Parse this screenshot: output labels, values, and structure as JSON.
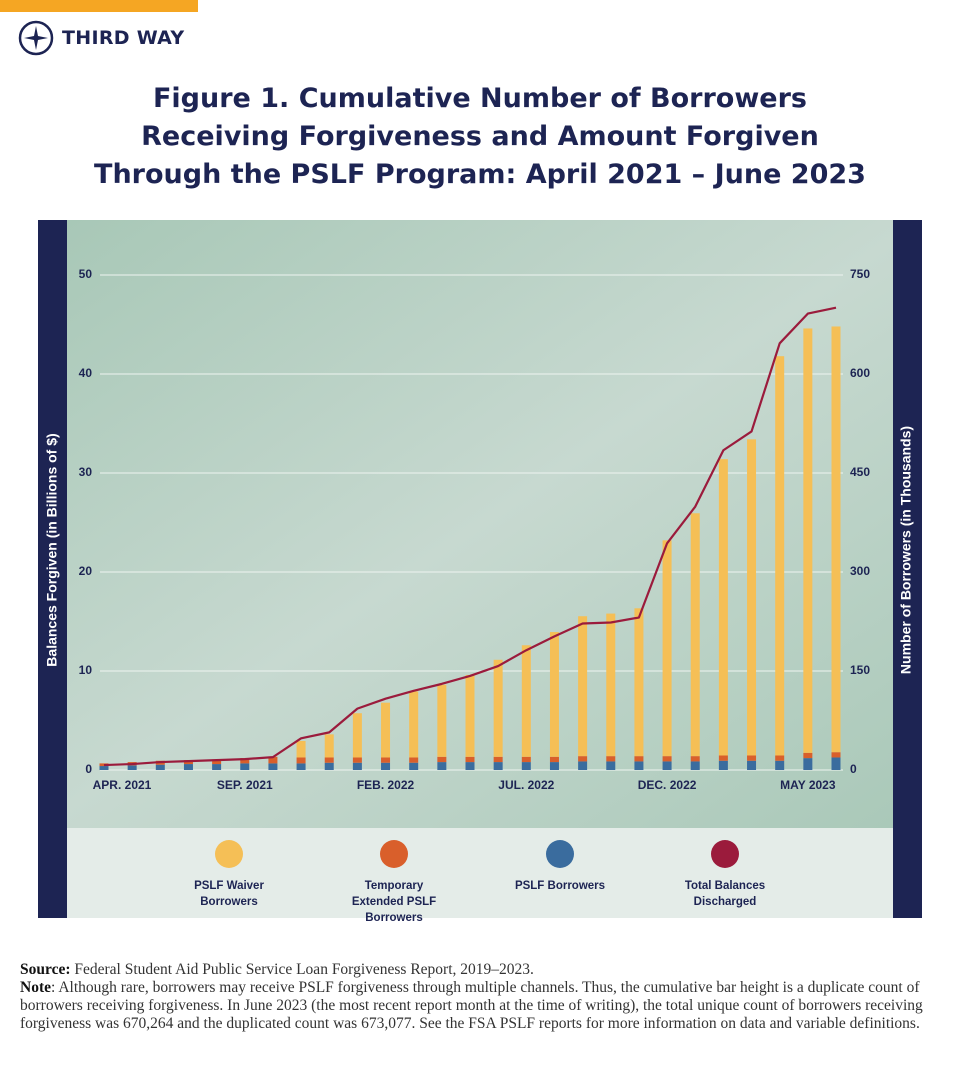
{
  "brand": "THIRD WAY",
  "chart_data": {
    "type": "bar",
    "title": "Figure 1. Cumulative Number of Borrowers Receiving Forgiveness and Amount Forgiven Through the PSLF Program: April 2021 – June 2023",
    "y_label": "Balances Forgiven (in Billions of $)",
    "y2_label": "Number of Borrowers (in Thousands)",
    "categories": [
      "APR. 2021",
      null,
      null,
      null,
      null,
      "SEP. 2021",
      null,
      null,
      null,
      null,
      "FEB. 2022",
      null,
      null,
      null,
      null,
      "JUL. 2022",
      null,
      null,
      null,
      null,
      "DEC. 2022",
      null,
      null,
      null,
      null,
      "MAY 2023",
      null
    ],
    "stacked": true,
    "series": [
      {
        "name": "PSLF Waiver Borrowers",
        "type": "bar",
        "axis": "y2",
        "color": "#f5bf56",
        "values": [
          0,
          0,
          0,
          0,
          0,
          0,
          0,
          25,
          35,
          67,
          83,
          100,
          109,
          124,
          147,
          169,
          189,
          212,
          216,
          224,
          327,
          368,
          449,
          479,
          605,
          643,
          645
        ]
      },
      {
        "name": "Temporary Extended PSLF Borrowers",
        "type": "bar",
        "axis": "y2",
        "color": "#d95f2b",
        "values": [
          4,
          5,
          6,
          6,
          7,
          8,
          10,
          9,
          8,
          8,
          8,
          8,
          8,
          8,
          8,
          8,
          8,
          8,
          8,
          8,
          8,
          8,
          8,
          8,
          8,
          8,
          8
        ]
      },
      {
        "name": "PSLF Borrowers",
        "type": "bar",
        "axis": "y2",
        "color": "#3a6c9e",
        "values": [
          6,
          7,
          8,
          9,
          9,
          10,
          10,
          10,
          11,
          11,
          11,
          11,
          12,
          12,
          12,
          12,
          12,
          13,
          13,
          13,
          13,
          13,
          14,
          14,
          14,
          18,
          19
        ]
      },
      {
        "name": "Total Balances Discharged",
        "type": "line",
        "axis": "y",
        "color": "#9b1b3c",
        "values": [
          0.5,
          0.6,
          0.8,
          0.9,
          1.0,
          1.1,
          1.3,
          3.2,
          3.8,
          6.2,
          7.2,
          8.0,
          8.7,
          9.5,
          10.5,
          12.1,
          13.5,
          14.8,
          14.9,
          15.4,
          22.9,
          26.6,
          32.3,
          34.2,
          43.1,
          46.1,
          46.7
        ]
      }
    ],
    "ylim": [
      0,
      50
    ],
    "yticks": [
      0,
      10,
      20,
      30,
      40,
      50
    ],
    "y2lim": [
      0,
      750
    ],
    "y2ticks": [
      0,
      150,
      300,
      450,
      600,
      750
    ],
    "grid": true
  },
  "footer": {
    "source_label": "Source:",
    "source": "Federal Student Aid Public Service Loan Forgiveness Report, 2019–2023.",
    "note_label": "Note",
    "note": ": Although rare, borrowers may receive PSLF forgiveness through multiple channels. Thus, the cumulative bar height is a duplicate count of borrowers receiving forgiveness. In June 2023 (the most recent report month at the time of writing), the total unique count of borrowers receiving forgiveness was 670,264 and the duplicated count was 673,077. See the FSA PSLF reports for more information on data and variable definitions."
  }
}
